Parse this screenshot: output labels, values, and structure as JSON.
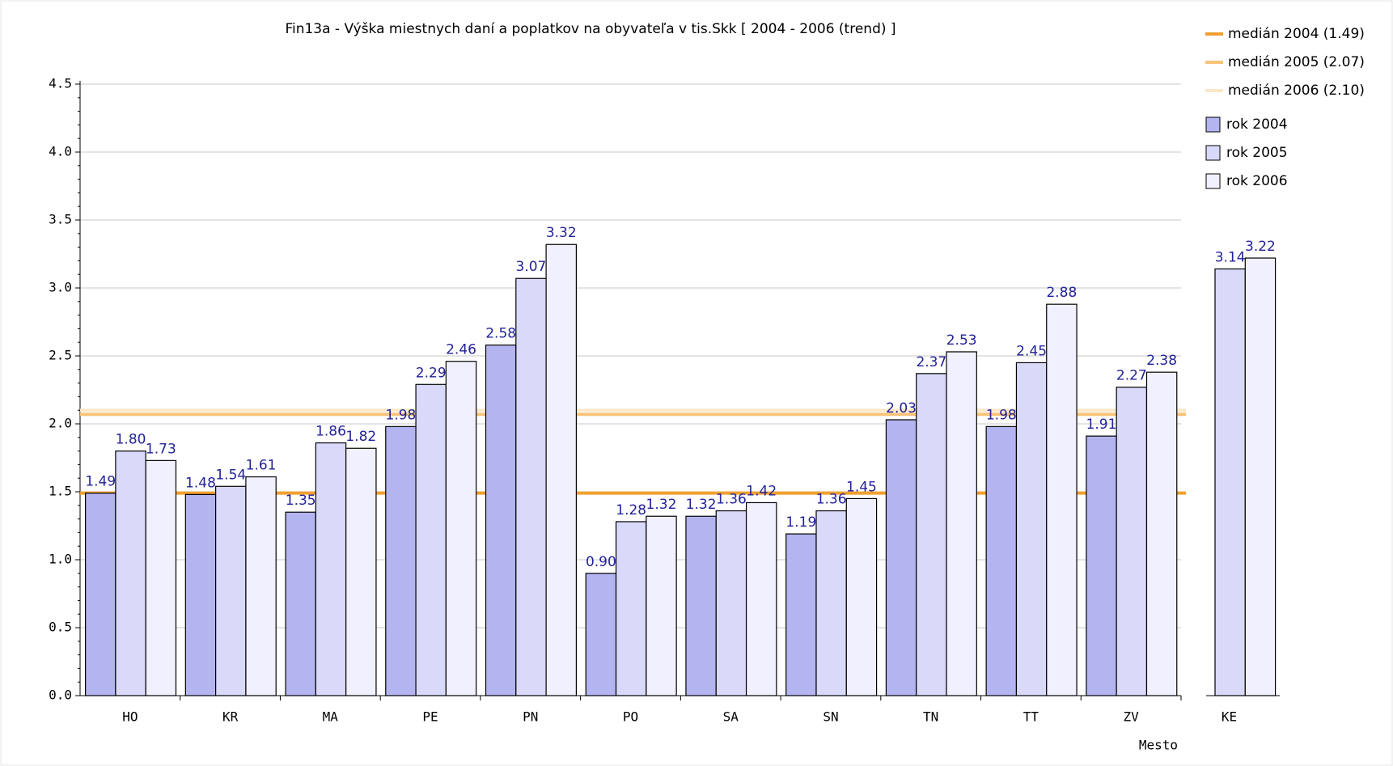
{
  "chart_data": [
    {
      "type": "bar",
      "title": "Fin13a - Výška miestnych daní a poplatkov na obyvateľa v tis.Skk [ 2004 - 2006 (trend) ]",
      "x_label": "Mesto",
      "categories": [
        "HO",
        "KR",
        "MA",
        "PE",
        "PN",
        "PO",
        "SA",
        "SN",
        "TN",
        "TT",
        "ZV"
      ],
      "series": [
        {
          "name": "rok 2004",
          "color": "#b4b4f0",
          "values": [
            1.49,
            1.48,
            1.35,
            1.98,
            2.58,
            0.9,
            1.32,
            1.19,
            2.03,
            1.98,
            1.91
          ],
          "value_labels": [
            "1.49",
            "1.48",
            "1.35",
            "1.98",
            "2.58",
            "0.90",
            "1.32",
            "1.19",
            "2.03",
            "1.98",
            "1.91"
          ]
        },
        {
          "name": "rok 2005",
          "color": "#d9d9fa",
          "values": [
            1.8,
            1.54,
            1.86,
            2.29,
            3.07,
            1.28,
            1.36,
            1.36,
            2.37,
            2.45,
            2.27
          ],
          "value_labels": [
            "1.80",
            "1.54",
            "1.86",
            "2.29",
            "3.07",
            "1.28",
            "1.36",
            "1.36",
            "2.37",
            "2.45",
            "2.27"
          ]
        },
        {
          "name": "rok 2006",
          "color": "#f0f0ff",
          "values": [
            1.73,
            1.61,
            1.82,
            2.46,
            3.32,
            1.32,
            1.42,
            1.45,
            2.53,
            2.88,
            2.38
          ],
          "value_labels": [
            "1.73",
            "1.61",
            "1.82",
            "2.46",
            "3.32",
            "1.32",
            "1.42",
            "1.45",
            "2.53",
            "2.88",
            "2.38"
          ]
        }
      ],
      "reference_lines": [
        {
          "name": "medián 2004 (1.49)",
          "value": 1.49,
          "color": "#f0a030"
        },
        {
          "name": "medián 2005 (2.07)",
          "value": 2.07,
          "color": "#f8c47a"
        },
        {
          "name": "medián 2006 (2.10)",
          "value": 2.1,
          "color": "#fbe8c8"
        }
      ],
      "ylim": [
        0,
        4.5
      ],
      "yticks": [
        {
          "value": 0,
          "label": "0.0"
        },
        0.5,
        {
          "value": 1,
          "label": "1.0"
        },
        1.5,
        {
          "value": 2,
          "label": "2.0"
        },
        2.5,
        {
          "value": 3,
          "label": "3.0"
        },
        3.5,
        {
          "value": 4,
          "label": "4.0"
        },
        4.5
      ],
      "grid": true
    },
    {
      "type": "bar",
      "categories": [
        "KE"
      ],
      "series": [
        {
          "color": "#d9d9fa",
          "values": [
            3.14
          ],
          "value_labels": [
            "3.14"
          ]
        },
        {
          "color": "#f0f0ff",
          "values": [
            3.22
          ],
          "value_labels": [
            "3.22"
          ]
        }
      ],
      "ylim": [
        0,
        4.5
      ]
    }
  ]
}
